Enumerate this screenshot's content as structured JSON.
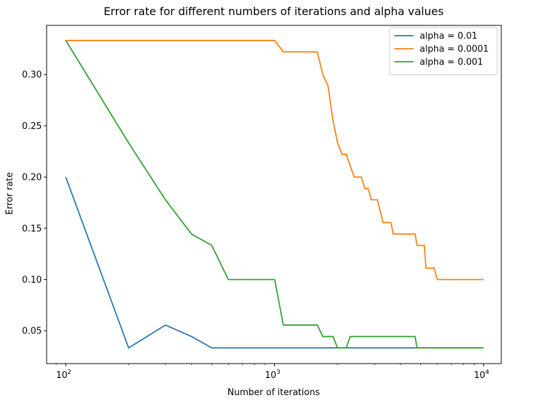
{
  "chart_data": {
    "type": "line",
    "title": "Error rate for different numbers of iterations and alpha values",
    "xlabel": "Number of iterations",
    "ylabel": "Error rate",
    "xscale": "log",
    "xlim": [
      81,
      12150
    ],
    "ylim": [
      0.018,
      0.348
    ],
    "xticks": [
      {
        "value": 100,
        "base": "10",
        "exp": "2"
      },
      {
        "value": 1000,
        "base": "10",
        "exp": "3"
      },
      {
        "value": 10000,
        "base": "10",
        "exp": "4"
      }
    ],
    "yticks": [
      {
        "value": 0.05,
        "label": "0.05"
      },
      {
        "value": 0.1,
        "label": "0.10"
      },
      {
        "value": 0.15,
        "label": "0.15"
      },
      {
        "value": 0.2,
        "label": "0.20"
      },
      {
        "value": 0.25,
        "label": "0.25"
      },
      {
        "value": 0.3,
        "label": "0.30"
      }
    ],
    "grid": false,
    "legend_position": "top-right",
    "series": [
      {
        "name": "alpha = 0.01",
        "color": "#1f77b4",
        "points": [
          [
            100,
            0.2
          ],
          [
            200,
            0.0333
          ],
          [
            300,
            0.0556
          ],
          [
            400,
            0.0444
          ],
          [
            500,
            0.0333
          ],
          [
            1000,
            0.0333
          ],
          [
            2000,
            0.0333
          ],
          [
            5000,
            0.0333
          ],
          [
            10000,
            0.0333
          ]
        ]
      },
      {
        "name": "alpha = 0.0001",
        "color": "#ff7f0e",
        "points": [
          [
            100,
            0.3333
          ],
          [
            1000,
            0.3333
          ],
          [
            1100,
            0.3222
          ],
          [
            1600,
            0.3222
          ],
          [
            1700,
            0.3
          ],
          [
            1800,
            0.2889
          ],
          [
            1900,
            0.2556
          ],
          [
            2000,
            0.2333
          ],
          [
            2100,
            0.2222
          ],
          [
            2200,
            0.2222
          ],
          [
            2400,
            0.2
          ],
          [
            2600,
            0.2
          ],
          [
            2700,
            0.1889
          ],
          [
            2800,
            0.1889
          ],
          [
            2900,
            0.1778
          ],
          [
            3100,
            0.1778
          ],
          [
            3300,
            0.1556
          ],
          [
            3600,
            0.1556
          ],
          [
            3700,
            0.1444
          ],
          [
            4700,
            0.1444
          ],
          [
            4800,
            0.1333
          ],
          [
            5200,
            0.1333
          ],
          [
            5300,
            0.1111
          ],
          [
            5800,
            0.1111
          ],
          [
            6000,
            0.1
          ],
          [
            10000,
            0.1
          ]
        ]
      },
      {
        "name": "alpha = 0.001",
        "color": "#2ca02c",
        "points": [
          [
            100,
            0.3333
          ],
          [
            200,
            0.2333
          ],
          [
            300,
            0.1778
          ],
          [
            400,
            0.1444
          ],
          [
            500,
            0.1333
          ],
          [
            600,
            0.1
          ],
          [
            1000,
            0.1
          ],
          [
            1100,
            0.0556
          ],
          [
            1600,
            0.0556
          ],
          [
            1700,
            0.0444
          ],
          [
            1900,
            0.0444
          ],
          [
            2000,
            0.0333
          ],
          [
            2200,
            0.0333
          ],
          [
            2300,
            0.0444
          ],
          [
            4700,
            0.0444
          ],
          [
            4800,
            0.0333
          ],
          [
            10000,
            0.0333
          ]
        ]
      }
    ]
  }
}
